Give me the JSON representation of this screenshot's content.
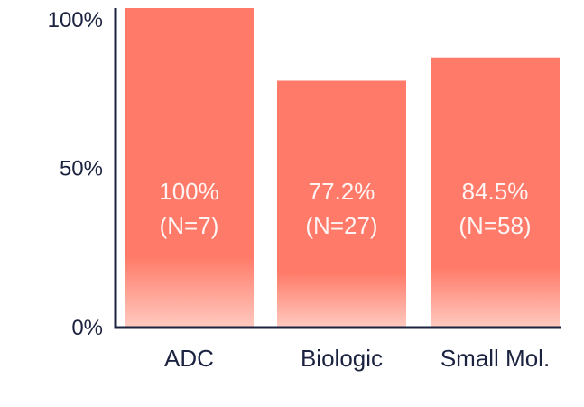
{
  "chart_data": {
    "type": "bar",
    "categories": [
      "ADC",
      "Biologic",
      "Small Mol."
    ],
    "values": [
      100,
      77.2,
      84.5
    ],
    "data_labels": [
      {
        "value": "100%",
        "n": "(N=7)"
      },
      {
        "value": "77.2%",
        "n": "(N=27)"
      },
      {
        "value": "84.5%",
        "n": "(N=58)"
      }
    ],
    "yticks": [
      {
        "value": 0,
        "label": "0%"
      },
      {
        "value": 50,
        "label": "50%"
      },
      {
        "value": 100,
        "label": "100%"
      }
    ],
    "ylim": [
      0,
      100
    ],
    "title": "",
    "xlabel": "",
    "ylabel": "",
    "grid": false,
    "bar_color": "#ff7a68",
    "bar_fade_color": "#ffc9bf",
    "axis_color": "#1c2340"
  }
}
